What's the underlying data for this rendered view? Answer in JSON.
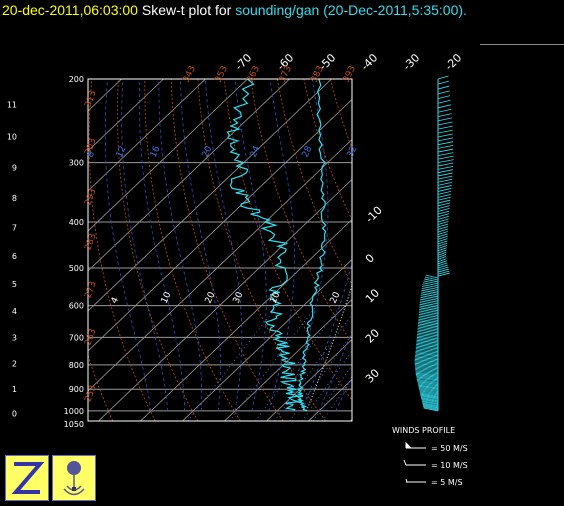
{
  "header": {
    "timestamp": "20-dec-2011,06:03:00",
    "plot_label": "Skew-t plot for",
    "source": "sounding/gan",
    "source_time": "(20-Dec-2011,5:35:00)."
  },
  "legend": {
    "title": "WINDS PROFILE",
    "items": [
      {
        "label": "= 50 M/S"
      },
      {
        "label": "= 10 M/S"
      },
      {
        "label": "= 5 M/S"
      }
    ]
  },
  "colors": {
    "frame": "#ffffff",
    "isobar": "#9a9a9a",
    "isotherm": "#9a9a9a",
    "dry_adiabat": "#c04a1a",
    "moist_adiabat": "#2d4fc8",
    "mixing_ratio": "#3c6ee0",
    "temperature": "#33ddee",
    "wind": "#33ddee",
    "logo_bg": "#ffff66",
    "logo_fg": "#3333aa"
  },
  "chart_data": {
    "type": "skew-t",
    "pressure_levels_hpa": [
      200,
      300,
      400,
      500,
      600,
      700,
      800,
      900,
      1000
    ],
    "pressure_range_hpa": [
      200,
      1050
    ],
    "bottom_label": "1050",
    "height_ticks_km": [
      "0",
      "1",
      "2",
      "3",
      "4",
      "5",
      "6",
      "7",
      "8",
      "9",
      "10",
      "11"
    ],
    "top_isotherm_labels": [
      "-70",
      "-60",
      "-50",
      "-40",
      "-30",
      "-20"
    ],
    "right_isotherm_labels": [
      "-10",
      "0",
      "10",
      "20",
      "30"
    ],
    "dry_adiabat_labels": [
      "313",
      "303",
      "293",
      "283",
      "273",
      "263",
      "253"
    ],
    "top_theta_labels": [
      "343",
      "353",
      "363",
      "373",
      "383",
      "393"
    ],
    "mixing_ratio_labels_top": [
      "8",
      "12",
      "16",
      "20",
      "24",
      "28",
      "32"
    ],
    "mixing_ratio_labels_mid": [
      "4",
      "10",
      "20",
      "30"
    ],
    "mixing_ratio_labels_low": [
      "10",
      "20"
    ],
    "temperature_profile": [
      {
        "p": 1000,
        "t": 27.0
      },
      {
        "p": 975,
        "t": 24.8
      },
      {
        "p": 950,
        "t": 23.0
      },
      {
        "p": 925,
        "t": 21.5
      },
      {
        "p": 900,
        "t": 20.0
      },
      {
        "p": 850,
        "t": 17.5
      },
      {
        "p": 800,
        "t": 15.0
      },
      {
        "p": 750,
        "t": 12.0
      },
      {
        "p": 700,
        "t": 9.0
      },
      {
        "p": 650,
        "t": 5.5
      },
      {
        "p": 600,
        "t": 2.0
      },
      {
        "p": 550,
        "t": -1.5
      },
      {
        "p": 500,
        "t": -5.5
      },
      {
        "p": 450,
        "t": -10.0
      },
      {
        "p": 400,
        "t": -16.0
      },
      {
        "p": 350,
        "t": -23.0
      },
      {
        "p": 300,
        "t": -31.0
      },
      {
        "p": 250,
        "t": -41.0
      },
      {
        "p": 200,
        "t": -53.0
      }
    ],
    "dewpoint_profile": [
      {
        "p": 1000,
        "t": 24.0
      },
      {
        "p": 950,
        "t": 21.0
      },
      {
        "p": 900,
        "t": 18.5
      },
      {
        "p": 850,
        "t": 14.0
      },
      {
        "p": 800,
        "t": 11.0
      },
      {
        "p": 750,
        "t": 7.0
      },
      {
        "p": 700,
        "t": 2.0
      },
      {
        "p": 650,
        "t": -3.0
      },
      {
        "p": 600,
        "t": -7.0
      },
      {
        "p": 550,
        "t": -11.0
      },
      {
        "p": 500,
        "t": -14.0
      },
      {
        "p": 450,
        "t": -20.0
      },
      {
        "p": 400,
        "t": -30.0
      },
      {
        "p": 370,
        "t": -38.0
      },
      {
        "p": 340,
        "t": -45.0
      },
      {
        "p": 300,
        "t": -50.0
      },
      {
        "p": 270,
        "t": -58.0
      },
      {
        "p": 240,
        "t": -62.0
      },
      {
        "p": 200,
        "t": -70.0
      }
    ],
    "wind_profile_ms": [
      {
        "p": 1000,
        "speed": 8
      },
      {
        "p": 950,
        "speed": 10
      },
      {
        "p": 900,
        "speed": 12
      },
      {
        "p": 850,
        "speed": 14
      },
      {
        "p": 800,
        "speed": 15
      },
      {
        "p": 750,
        "speed": 14
      },
      {
        "p": 700,
        "speed": 13
      },
      {
        "p": 650,
        "speed": 12
      },
      {
        "p": 600,
        "speed": 11
      },
      {
        "p": 550,
        "speed": 9
      },
      {
        "p": 520,
        "speed": 6
      },
      {
        "p": 480,
        "speed": 3
      },
      {
        "p": 450,
        "speed": 4
      },
      {
        "p": 400,
        "speed": 5
      },
      {
        "p": 350,
        "speed": 7
      },
      {
        "p": 300,
        "speed": 9
      },
      {
        "p": 250,
        "speed": 8
      },
      {
        "p": 200,
        "speed": 5
      }
    ]
  }
}
